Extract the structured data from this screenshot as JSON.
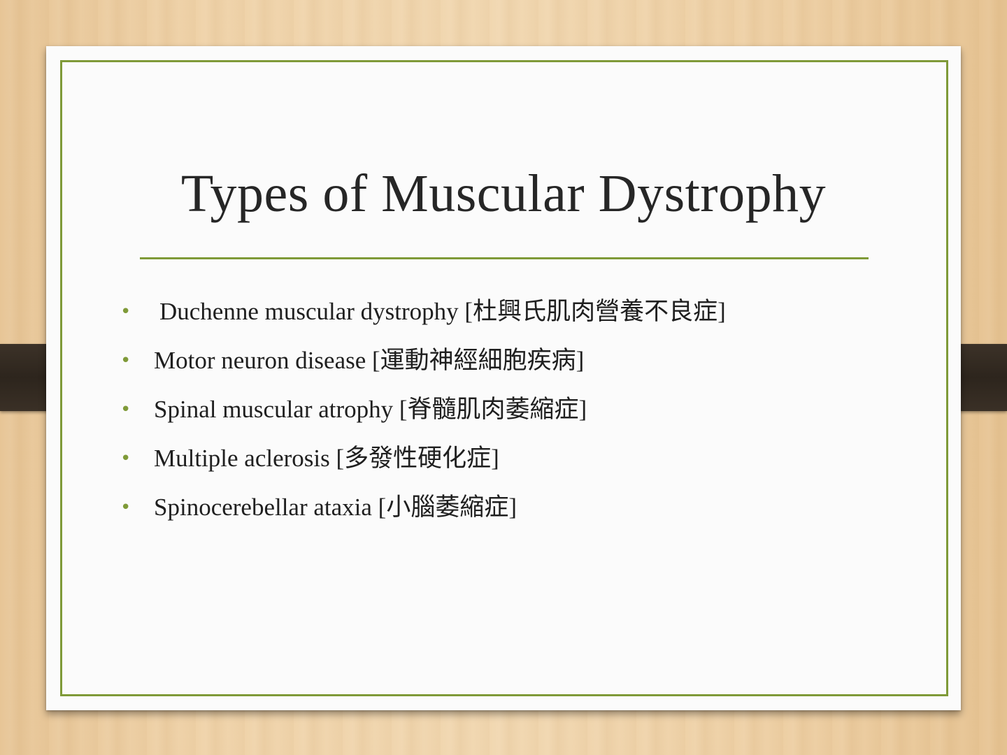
{
  "slide": {
    "title": "Types of Muscular Dystrophy",
    "bullet_symbol": "•",
    "items": [
      {
        "text": "Duchenne muscular dystrophy [杜興氏肌肉營養不良症]"
      },
      {
        "text": "Motor neuron disease [運動神經細胞疾病]"
      },
      {
        "text": "Spinal muscular atrophy [脊髓肌肉萎縮症]"
      },
      {
        "text": "Multiple aclerosis [多發性硬化症]"
      },
      {
        "text": "Spinocerebellar ataxia [小腦萎縮症]"
      }
    ]
  },
  "colors": {
    "accent": "#7f9a38",
    "strap": "#2d251d",
    "background": "#efd2a8",
    "card": "#fbfbfb",
    "text": "#262626"
  }
}
